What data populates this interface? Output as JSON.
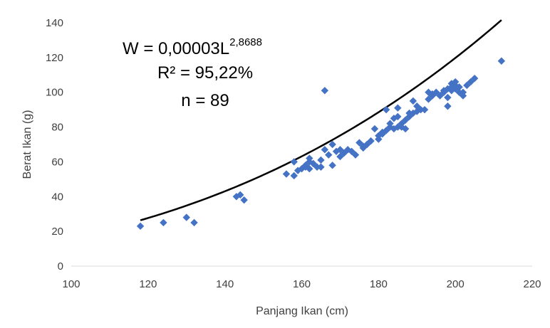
{
  "chart_data": {
    "type": "scatter",
    "title": "",
    "xlabel": "Panjang Ikan (cm)",
    "ylabel": "Berat Ikan (g)",
    "xlim": [
      100,
      220
    ],
    "ylim": [
      0,
      140
    ],
    "x_ticks": [
      100,
      120,
      140,
      160,
      180,
      200,
      220
    ],
    "y_ticks": [
      0,
      20,
      40,
      60,
      80,
      100,
      120,
      140
    ],
    "grid": false,
    "legend": "none",
    "colors": {
      "points": "#4472C4",
      "trendline": "#000000",
      "axis_text": "#404040",
      "axis_line": "#d9d9d9"
    },
    "annotations": {
      "equation_main": "W = 0,00003L",
      "equation_exponent": "2,8688",
      "r_squared": "R² = 95,22%",
      "n": "n = 89"
    },
    "trendline": {
      "type": "power",
      "a": 3e-05,
      "b": 2.8688,
      "x_range": [
        118,
        212
      ]
    },
    "points": [
      [
        118,
        23
      ],
      [
        124,
        25
      ],
      [
        130,
        28
      ],
      [
        132,
        25
      ],
      [
        143,
        40
      ],
      [
        144,
        41
      ],
      [
        145,
        38
      ],
      [
        156,
        53
      ],
      [
        158,
        60
      ],
      [
        158,
        52
      ],
      [
        159,
        55
      ],
      [
        160,
        56
      ],
      [
        161,
        58
      ],
      [
        161,
        57
      ],
      [
        162,
        62
      ],
      [
        162,
        56
      ],
      [
        162,
        60
      ],
      [
        163,
        59
      ],
      [
        164,
        57
      ],
      [
        165,
        61
      ],
      [
        165,
        57
      ],
      [
        166,
        101
      ],
      [
        166,
        67
      ],
      [
        167,
        64
      ],
      [
        168,
        70
      ],
      [
        168,
        58
      ],
      [
        169,
        66
      ],
      [
        170,
        67
      ],
      [
        170,
        63
      ],
      [
        171,
        65
      ],
      [
        172,
        67
      ],
      [
        173,
        66
      ],
      [
        174,
        64
      ],
      [
        175,
        71
      ],
      [
        176,
        68
      ],
      [
        176,
        69
      ],
      [
        177,
        70
      ],
      [
        178,
        72
      ],
      [
        179,
        79
      ],
      [
        180,
        73
      ],
      [
        180,
        75
      ],
      [
        181,
        76
      ],
      [
        181,
        77
      ],
      [
        182,
        90
      ],
      [
        182,
        78
      ],
      [
        183,
        80
      ],
      [
        183,
        82
      ],
      [
        184,
        85
      ],
      [
        184,
        79
      ],
      [
        185,
        91
      ],
      [
        185,
        86
      ],
      [
        185,
        80
      ],
      [
        186,
        82
      ],
      [
        186,
        80
      ],
      [
        187,
        79
      ],
      [
        187,
        84
      ],
      [
        188,
        88
      ],
      [
        188,
        86
      ],
      [
        189,
        95
      ],
      [
        189,
        88
      ],
      [
        190,
        89
      ],
      [
        190,
        92
      ],
      [
        191,
        90
      ],
      [
        192,
        90
      ],
      [
        193,
        96
      ],
      [
        193,
        100
      ],
      [
        194,
        98
      ],
      [
        194,
        99
      ],
      [
        195,
        100
      ],
      [
        196,
        98
      ],
      [
        197,
        100
      ],
      [
        197,
        101
      ],
      [
        198,
        92
      ],
      [
        198,
        97
      ],
      [
        198,
        102
      ],
      [
        199,
        103
      ],
      [
        199,
        105
      ],
      [
        199,
        101
      ],
      [
        200,
        104
      ],
      [
        200,
        106
      ],
      [
        200,
        102
      ],
      [
        201,
        100
      ],
      [
        201,
        103
      ],
      [
        202,
        98
      ],
      [
        202,
        100
      ],
      [
        203,
        104
      ],
      [
        204,
        106
      ],
      [
        205,
        108
      ],
      [
        212,
        118
      ]
    ]
  }
}
